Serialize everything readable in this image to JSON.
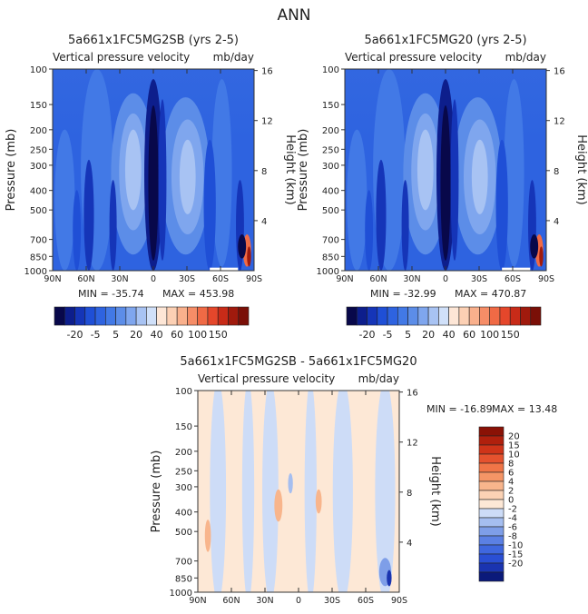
{
  "figure_title": "ANN",
  "colors": {
    "neg_scale": [
      "#08084a",
      "#0d1e8c",
      "#1535b8",
      "#1f4fd6",
      "#2e63e0",
      "#4279e6",
      "#5c8de8",
      "#7fa6ee",
      "#a8c3f3",
      "#d0e0f9"
    ],
    "pos_scale": [
      "#fde6d6",
      "#fcd0b4",
      "#f9b08c",
      "#f68d67",
      "#f06a45",
      "#e5472b",
      "#c82b18",
      "#a01a0d",
      "#7a0f07"
    ],
    "diff_neg": [
      "#0b1a7a",
      "#1a34b0",
      "#2a4fd4",
      "#3f67df",
      "#5b80e4",
      "#7e9ee8",
      "#a5bef0",
      "#cddcf7"
    ],
    "diff_pos": [
      "#fde8d6",
      "#fbd2b4",
      "#f8b58c",
      "#f59566",
      "#f07547",
      "#e5522e",
      "#cf3419",
      "#b0200d",
      "#8a1206"
    ]
  },
  "chart_data": [
    {
      "type": "heatmap",
      "title": "5a661x1FC5MG2SB (yrs 2-5)",
      "subtitle": "Vertical pressure velocity",
      "units": "mb/day",
      "ylabel": "Pressure (mb)",
      "ylabel_right": "Height (km)",
      "xlabel": "",
      "x_ticks": [
        "90N",
        "60N",
        "30N",
        "0",
        "30S",
        "60S",
        "90S"
      ],
      "y_ticks": [
        "100",
        "150",
        "200",
        "250",
        "300",
        "400",
        "500",
        "700",
        "850",
        "1000"
      ],
      "y_ticks_right": [
        "16",
        "12",
        "8",
        "4"
      ],
      "min_label": "MIN = -35.74",
      "max_label": "MAX = 453.98",
      "colorbar_labels": [
        "-20",
        "-5",
        "5",
        "20",
        "40",
        "60",
        "100",
        "150"
      ]
    },
    {
      "type": "heatmap",
      "title": "5a661x1FC5MG20 (yrs 2-5)",
      "subtitle": "Vertical pressure velocity",
      "units": "mb/day",
      "ylabel": "Pressure (mb)",
      "ylabel_right": "Height (km)",
      "xlabel": "",
      "x_ticks": [
        "90N",
        "60N",
        "30N",
        "0",
        "30S",
        "60S",
        "90S"
      ],
      "y_ticks": [
        "100",
        "150",
        "200",
        "250",
        "300",
        "400",
        "500",
        "700",
        "850",
        "1000"
      ],
      "y_ticks_right": [
        "16",
        "12",
        "8",
        "4"
      ],
      "min_label": "MIN = -32.99",
      "max_label": "MAX = 470.87",
      "colorbar_labels": [
        "-20",
        "-5",
        "5",
        "20",
        "40",
        "60",
        "100",
        "150"
      ]
    },
    {
      "type": "heatmap",
      "title": "5a661x1FC5MG2SB - 5a661x1FC5MG20",
      "subtitle": "Vertical pressure velocity",
      "units": "mb/day",
      "ylabel": "Pressure (mb)",
      "ylabel_right": "Height (km)",
      "xlabel": "",
      "x_ticks": [
        "90N",
        "60N",
        "30N",
        "0",
        "30S",
        "60S",
        "90S"
      ],
      "y_ticks": [
        "100",
        "150",
        "200",
        "250",
        "300",
        "400",
        "500",
        "700",
        "850",
        "1000"
      ],
      "y_ticks_right": [
        "16",
        "12",
        "8",
        "4"
      ],
      "min_label": "MIN = -16.89",
      "max_label": "MAX =  13.48",
      "colorbar_labels": [
        "20",
        "15",
        "10",
        "8",
        "6",
        "4",
        "2",
        "0",
        "-2",
        "-4",
        "-6",
        "-8",
        "-10",
        "-15",
        "-20"
      ]
    }
  ]
}
